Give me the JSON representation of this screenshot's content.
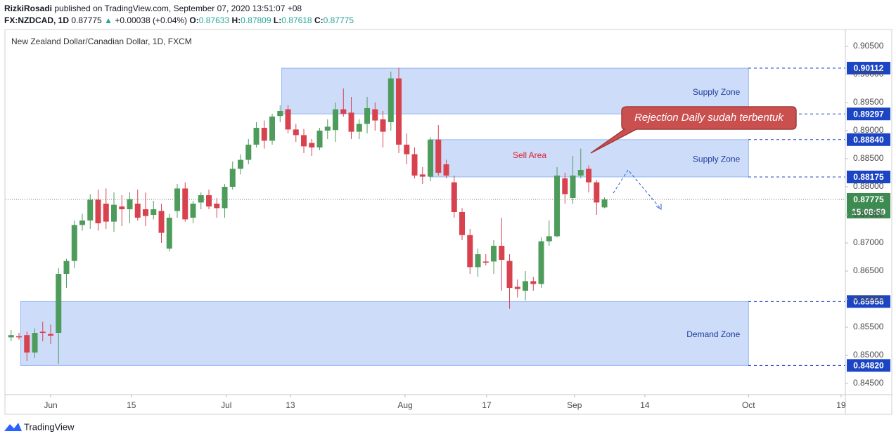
{
  "header": {
    "author": "RizkiRosadi",
    "published": "published on TradingView.com, September 07, 2020 13:51:07 +08",
    "symbol": "FX:NZDCAD, 1D",
    "price": "0.87775",
    "change": "+0.00038 (+0.04%)",
    "ohlc": [
      {
        "label": "O:",
        "value": "0.87633"
      },
      {
        "label": "H:",
        "value": "0.87809"
      },
      {
        "label": "L:",
        "value": "0.87618"
      },
      {
        "label": "C:",
        "value": "0.87775"
      }
    ]
  },
  "footer": "TradingView",
  "chart_data": {
    "type": "candlestick",
    "title": "New Zealand Dollar/Canadian Dollar, 1D, FXCM",
    "categories": [
      null,
      null,
      null,
      null,
      null,
      null,
      null,
      null,
      null,
      null,
      null,
      null,
      null,
      null,
      null,
      null,
      null,
      null,
      null,
      null,
      null,
      null,
      null,
      null,
      null,
      null,
      null,
      null,
      null,
      null,
      null,
      null,
      null,
      null,
      null,
      null,
      null,
      null,
      null,
      null,
      null,
      null,
      null,
      null,
      null,
      null,
      null,
      null,
      null,
      null,
      null,
      null,
      null,
      null,
      null,
      null,
      null,
      null,
      null,
      null,
      null,
      null,
      null,
      null,
      null,
      null,
      null,
      null,
      null,
      null,
      null,
      null,
      null,
      null,
      null,
      null
    ],
    "open": [
      0.8532,
      0.8534,
      0.8536,
      0.8505,
      0.8542,
      0.8538,
      0.854,
      0.8645,
      0.8668,
      0.8732,
      0.874,
      0.8777,
      0.877,
      0.8738,
      0.8765,
      0.876,
      0.877,
      0.876,
      0.875,
      0.8757,
      0.869,
      0.8757,
      0.8797,
      0.8745,
      0.8772,
      0.8785,
      0.877,
      0.8762,
      0.88,
      0.8832,
      0.8848,
      0.8875,
      0.8905,
      0.8882,
      0.8926,
      0.8938,
      0.8902,
      0.8892,
      0.8878,
      0.887,
      0.89,
      0.8901,
      0.8938,
      0.8932,
      0.8898,
      0.8912,
      0.8938,
      0.892,
      0.8915,
      0.8993,
      0.8875,
      0.8858,
      0.8822,
      0.8818,
      0.8884,
      0.884,
      0.8808,
      0.8755,
      0.8714,
      0.8657,
      0.8667,
      0.8667,
      0.8695,
      0.8668,
      0.8622,
      0.8615,
      0.8632,
      0.8627,
      0.8703,
      0.8712,
      0.8815,
      0.878,
      0.882,
      0.8832,
      0.8808,
      0.87633
    ],
    "high": [
      0.8545,
      0.854,
      0.8542,
      0.8548,
      0.856,
      0.8555,
      0.8655,
      0.8672,
      0.874,
      0.8752,
      0.8787,
      0.8795,
      0.8797,
      0.879,
      0.8785,
      0.879,
      0.8795,
      0.879,
      0.8775,
      0.877,
      0.8752,
      0.8805,
      0.8808,
      0.8775,
      0.879,
      0.8795,
      0.878,
      0.8805,
      0.8845,
      0.8858,
      0.8885,
      0.8915,
      0.8918,
      0.893,
      0.8945,
      0.8945,
      0.8912,
      0.8903,
      0.8885,
      0.8905,
      0.892,
      0.895,
      0.8975,
      0.896,
      0.892,
      0.896,
      0.895,
      0.8935,
      0.9005,
      0.9012,
      0.8895,
      0.887,
      0.8835,
      0.8888,
      0.891,
      0.8848,
      0.882,
      0.8762,
      0.8725,
      0.869,
      0.868,
      0.8705,
      0.8745,
      0.868,
      0.8635,
      0.865,
      0.864,
      0.871,
      0.874,
      0.8835,
      0.8825,
      0.8855,
      0.8868,
      0.8838,
      0.8812,
      0.87809
    ],
    "low": [
      0.8525,
      0.8528,
      0.849,
      0.8495,
      0.8525,
      0.852,
      0.8485,
      0.862,
      0.8655,
      0.8722,
      0.8725,
      0.8722,
      0.8725,
      0.872,
      0.873,
      0.8735,
      0.874,
      0.873,
      0.8742,
      0.87,
      0.8685,
      0.8745,
      0.8738,
      0.8735,
      0.876,
      0.876,
      0.8745,
      0.8745,
      0.8795,
      0.8822,
      0.884,
      0.887,
      0.8868,
      0.8875,
      0.8915,
      0.8895,
      0.888,
      0.886,
      0.8855,
      0.8865,
      0.8885,
      0.888,
      0.8925,
      0.8885,
      0.8885,
      0.8895,
      0.89,
      0.887,
      0.89,
      0.886,
      0.884,
      0.8815,
      0.8805,
      0.881,
      0.882,
      0.8815,
      0.8745,
      0.8705,
      0.8645,
      0.864,
      0.866,
      0.8645,
      0.8615,
      0.8583,
      0.8603,
      0.8598,
      0.8615,
      0.862,
      0.8695,
      0.871,
      0.877,
      0.877,
      0.8815,
      0.879,
      0.875,
      0.87618
    ],
    "close": [
      0.8536,
      0.8532,
      0.8505,
      0.854,
      0.854,
      0.8535,
      0.8645,
      0.8668,
      0.8732,
      0.874,
      0.8777,
      0.8735,
      0.8738,
      0.8768,
      0.876,
      0.8778,
      0.8745,
      0.8748,
      0.876,
      0.8718,
      0.8745,
      0.8797,
      0.8742,
      0.877,
      0.8785,
      0.8765,
      0.8762,
      0.88,
      0.8832,
      0.8848,
      0.8875,
      0.8905,
      0.8882,
      0.8925,
      0.8935,
      0.8902,
      0.8892,
      0.8872,
      0.887,
      0.89,
      0.8907,
      0.8938,
      0.893,
      0.8898,
      0.8912,
      0.894,
      0.8918,
      0.8898,
      0.8993,
      0.8875,
      0.8858,
      0.882,
      0.8818,
      0.8884,
      0.8825,
      0.882,
      0.8755,
      0.8714,
      0.8657,
      0.868,
      0.8665,
      0.8695,
      0.867,
      0.862,
      0.8618,
      0.8632,
      0.8627,
      0.8703,
      0.8712,
      0.882,
      0.8787,
      0.882,
      0.883,
      0.8808,
      0.8772,
      0.87775
    ],
    "up_color": "#4e9c5c",
    "down_color": "#d8424f",
    "xlim": [
      -0.69,
      105.44
    ],
    "xticks": [
      {
        "value": 5,
        "label": "Jun"
      },
      {
        "value": 15.2,
        "label": "15"
      },
      {
        "value": 27.2,
        "label": "Jul"
      },
      {
        "value": 35.3,
        "label": "13"
      },
      {
        "value": 49.8,
        "label": "Aug"
      },
      {
        "value": 60.1,
        "label": "17"
      },
      {
        "value": 71.2,
        "label": "Sep"
      },
      {
        "value": 80.1,
        "label": "14"
      },
      {
        "value": 93.2,
        "label": "Oct"
      },
      {
        "value": 104.9,
        "label": "19"
      }
    ],
    "ylim": [
      0.843,
      0.908
    ],
    "yticks": [
      {
        "value": 0.905,
        "label": "0.90500"
      },
      {
        "value": 0.9,
        "label": "0.90000"
      },
      {
        "value": 0.895,
        "label": "0.89500"
      },
      {
        "value": 0.89,
        "label": "0.89000"
      },
      {
        "value": 0.885,
        "label": "0.88500"
      },
      {
        "value": 0.88,
        "label": "0.88000"
      },
      {
        "value": 0.875,
        "label": "0.87500"
      },
      {
        "value": 0.87,
        "label": "0.87000"
      },
      {
        "value": 0.865,
        "label": "0.86500"
      },
      {
        "value": 0.86,
        "label": "0.86000"
      },
      {
        "value": 0.855,
        "label": "0.85500"
      },
      {
        "value": 0.85,
        "label": "0.85000"
      },
      {
        "value": 0.845,
        "label": "0.84500"
      }
    ],
    "grid": false,
    "zones": [
      {
        "label": "Supply Zone",
        "y": [
          0.89297,
          0.90112
        ],
        "x": [
          34.2,
          93.2
        ]
      },
      {
        "label": "Supply Zone",
        "y": [
          0.88175,
          0.8884
        ],
        "x": [
          52.9,
          93.2
        ]
      },
      {
        "label": "Demand Zone",
        "y": [
          0.8482,
          0.85958
        ],
        "x": [
          1.2,
          93.2
        ]
      }
    ],
    "levels": [
      0.90112,
      0.89297,
      {
        "value": 0.8884,
        "label": "0.88840"
      },
      0.88175,
      0.85958,
      {
        "value": 0.8482,
        "label": "0.84820"
      }
    ],
    "level_color": "#1c45c4",
    "last_price": 0.87775,
    "countdown": "15:08:59",
    "last_color": "#3d8b51",
    "annotations": [
      "Sell Area",
      "Rejection Daily sudah terbentuk"
    ]
  }
}
